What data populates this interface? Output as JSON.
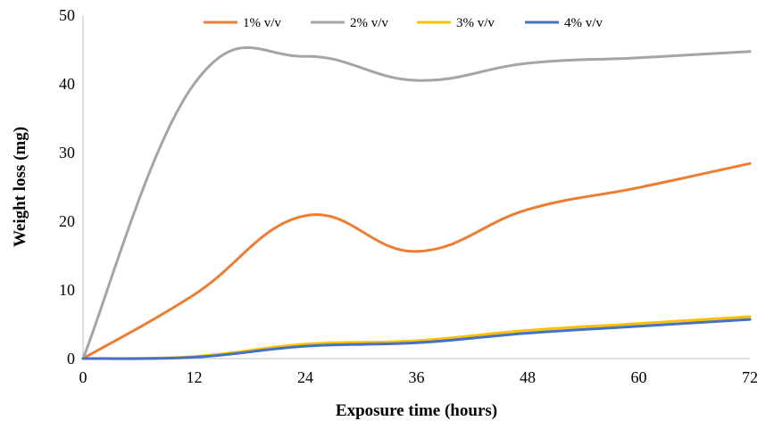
{
  "chart_data": {
    "type": "line",
    "xlabel": "Exposure time (hours)",
    "ylabel": "Weight loss (mg)",
    "x": [
      0,
      12,
      24,
      36,
      48,
      60,
      72
    ],
    "xlim": [
      0,
      72
    ],
    "ylim": [
      0,
      50
    ],
    "xticks": [
      "0",
      "12",
      "24",
      "36",
      "48",
      "60",
      "72"
    ],
    "yticks": [
      "0",
      "10",
      "20",
      "30",
      "40",
      "50"
    ],
    "grid": false,
    "legend_position": "top",
    "series": [
      {
        "name": "1% v/v",
        "color": "#ED7D31",
        "values": [
          0,
          9.3,
          20.8,
          15.6,
          21.7,
          24.9,
          28.4
        ]
      },
      {
        "name": "2% v/v",
        "color": "#A5A5A5",
        "values": [
          0,
          40.0,
          44.0,
          40.5,
          43.0,
          43.8,
          44.7
        ]
      },
      {
        "name": "3% v/v",
        "color": "#FFC000",
        "values": [
          0,
          0.3,
          2.1,
          2.6,
          4.1,
          5.1,
          6.1
        ]
      },
      {
        "name": "4% v/v",
        "color": "#4472C4",
        "values": [
          0,
          0.2,
          1.8,
          2.3,
          3.7,
          4.7,
          5.7
        ]
      }
    ]
  }
}
